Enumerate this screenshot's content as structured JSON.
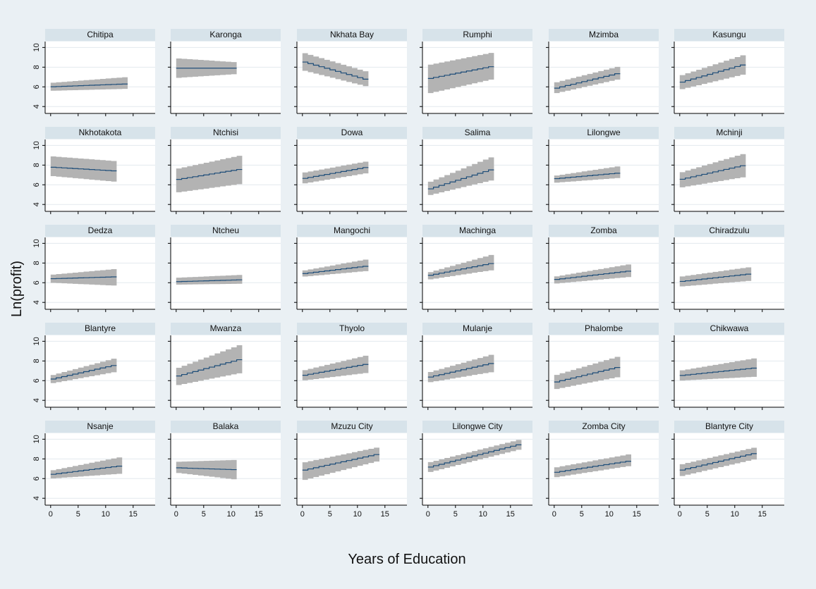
{
  "chart_data": {
    "type": "line",
    "xlabel": "Years of Education",
    "ylabel": "Ln(profit)",
    "xlim": [
      -1,
      19
    ],
    "ylim": [
      3.3,
      10.6
    ],
    "xticks": [
      0,
      5,
      10,
      15
    ],
    "yticks": [
      4,
      6,
      8,
      10
    ],
    "grid": "horizontal",
    "colors": {
      "line": "#1f4e79",
      "band": "#b3b3b3",
      "strip": "#d7e3ea",
      "panel": "#ffffff",
      "grid": "#e3e9ee"
    },
    "panels": [
      {
        "name": "Chitipa",
        "x_max": 14,
        "fit": [
          6.0,
          6.3
        ],
        "lower": [
          5.6,
          5.8
        ],
        "upper": [
          6.4,
          7.0
        ]
      },
      {
        "name": "Karonga",
        "x_max": 11,
        "fit": [
          7.9,
          7.9
        ],
        "lower": [
          6.9,
          7.3
        ],
        "upper": [
          8.9,
          8.5
        ]
      },
      {
        "name": "Nkhata Bay",
        "x_max": 12,
        "fit": [
          8.6,
          6.7
        ],
        "lower": [
          7.7,
          6.0
        ],
        "upper": [
          9.5,
          7.5
        ]
      },
      {
        "name": "Rumphi",
        "x_max": 12,
        "fit": [
          6.8,
          8.1
        ],
        "lower": [
          5.3,
          6.8
        ],
        "upper": [
          8.2,
          9.5
        ]
      },
      {
        "name": "Mzimba",
        "x_max": 12,
        "fit": [
          5.8,
          7.4
        ],
        "lower": [
          5.3,
          6.8
        ],
        "upper": [
          6.4,
          8.1
        ]
      },
      {
        "name": "Kasungu",
        "x_max": 12,
        "fit": [
          6.4,
          8.3
        ],
        "lower": [
          5.7,
          7.3
        ],
        "upper": [
          7.1,
          9.3
        ]
      },
      {
        "name": "Nkhotakota",
        "x_max": 12,
        "fit": [
          7.8,
          7.4
        ],
        "lower": [
          6.9,
          6.3
        ],
        "upper": [
          8.9,
          8.4
        ]
      },
      {
        "name": "Ntchisi",
        "x_max": 12,
        "fit": [
          6.5,
          7.6
        ],
        "lower": [
          5.2,
          6.1
        ],
        "upper": [
          7.6,
          9.0
        ]
      },
      {
        "name": "Dowa",
        "x_max": 12,
        "fit": [
          6.6,
          7.8
        ],
        "lower": [
          6.1,
          7.2
        ],
        "upper": [
          7.2,
          8.4
        ]
      },
      {
        "name": "Salima",
        "x_max": 12,
        "fit": [
          5.5,
          7.6
        ],
        "lower": [
          4.9,
          6.5
        ],
        "upper": [
          6.2,
          8.9
        ]
      },
      {
        "name": "Lilongwe",
        "x_max": 12,
        "fit": [
          6.6,
          7.2
        ],
        "lower": [
          6.2,
          6.7
        ],
        "upper": [
          6.9,
          7.9
        ]
      },
      {
        "name": "Mchinji",
        "x_max": 12,
        "fit": [
          6.5,
          8.0
        ],
        "lower": [
          5.7,
          6.8
        ],
        "upper": [
          7.2,
          9.2
        ]
      },
      {
        "name": "Dedza",
        "x_max": 12,
        "fit": [
          6.4,
          6.6
        ],
        "lower": [
          6.0,
          5.7
        ],
        "upper": [
          6.8,
          7.4
        ]
      },
      {
        "name": "Ntcheu",
        "x_max": 12,
        "fit": [
          6.1,
          6.3
        ],
        "lower": [
          5.8,
          5.9
        ],
        "upper": [
          6.5,
          6.8
        ]
      },
      {
        "name": "Mangochi",
        "x_max": 12,
        "fit": [
          6.9,
          7.7
        ],
        "lower": [
          6.6,
          7.2
        ],
        "upper": [
          7.2,
          8.4
        ]
      },
      {
        "name": "Machinga",
        "x_max": 12,
        "fit": [
          6.7,
          8.0
        ],
        "lower": [
          6.3,
          7.3
        ],
        "upper": [
          7.0,
          8.9
        ]
      },
      {
        "name": "Zomba",
        "x_max": 14,
        "fit": [
          6.3,
          7.2
        ],
        "lower": [
          5.9,
          6.6
        ],
        "upper": [
          6.6,
          7.9
        ]
      },
      {
        "name": "Chiradzulu",
        "x_max": 13,
        "fit": [
          6.1,
          6.9
        ],
        "lower": [
          5.6,
          6.2
        ],
        "upper": [
          6.6,
          7.6
        ]
      },
      {
        "name": "Blantyre",
        "x_max": 12,
        "fit": [
          6.1,
          7.6
        ],
        "lower": [
          5.7,
          6.9
        ],
        "upper": [
          6.5,
          8.3
        ]
      },
      {
        "name": "Mwanza",
        "x_max": 12,
        "fit": [
          6.4,
          8.2
        ],
        "lower": [
          5.5,
          6.8
        ],
        "upper": [
          7.2,
          9.7
        ]
      },
      {
        "name": "Thyolo",
        "x_max": 12,
        "fit": [
          6.5,
          7.7
        ],
        "lower": [
          6.0,
          6.8
        ],
        "upper": [
          7.0,
          8.6
        ]
      },
      {
        "name": "Mulanje",
        "x_max": 12,
        "fit": [
          6.3,
          7.8
        ],
        "lower": [
          5.8,
          6.9
        ],
        "upper": [
          6.8,
          8.7
        ]
      },
      {
        "name": "Phalombe",
        "x_max": 12,
        "fit": [
          5.8,
          7.4
        ],
        "lower": [
          5.1,
          6.4
        ],
        "upper": [
          6.5,
          8.5
        ]
      },
      {
        "name": "Chikwawa",
        "x_max": 14,
        "fit": [
          6.5,
          7.3
        ],
        "lower": [
          6.0,
          6.4
        ],
        "upper": [
          7.0,
          8.3
        ]
      },
      {
        "name": "Nsanje",
        "x_max": 13,
        "fit": [
          6.4,
          7.3
        ],
        "lower": [
          6.0,
          6.5
        ],
        "upper": [
          6.8,
          8.2
        ]
      },
      {
        "name": "Balaka",
        "x_max": 11,
        "fit": [
          7.1,
          6.9
        ],
        "lower": [
          6.6,
          5.9
        ],
        "upper": [
          7.7,
          7.9
        ]
      },
      {
        "name": "Mzuzu City",
        "x_max": 14,
        "fit": [
          6.8,
          8.5
        ],
        "lower": [
          5.8,
          7.8
        ],
        "upper": [
          7.6,
          9.2
        ]
      },
      {
        "name": "Lilongwe City",
        "x_max": 17,
        "fit": [
          7.1,
          9.5
        ],
        "lower": [
          6.6,
          9.0
        ],
        "upper": [
          7.6,
          10.0
        ]
      },
      {
        "name": "Zomba City",
        "x_max": 14,
        "fit": [
          6.6,
          7.8
        ],
        "lower": [
          6.1,
          7.3
        ],
        "upper": [
          7.1,
          8.5
        ]
      },
      {
        "name": "Blantyre City",
        "x_max": 14,
        "fit": [
          6.8,
          8.6
        ],
        "lower": [
          6.2,
          8.0
        ],
        "upper": [
          7.4,
          9.2
        ]
      }
    ]
  }
}
